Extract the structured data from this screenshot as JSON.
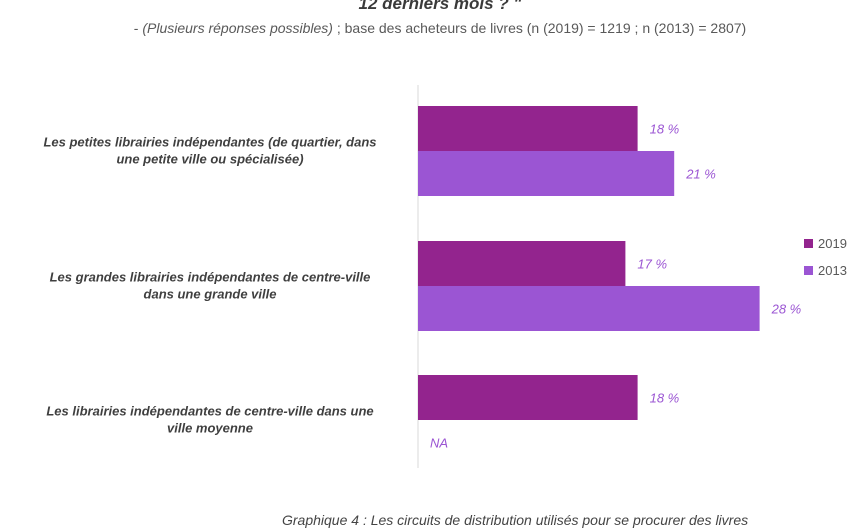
{
  "header": {
    "title_partial": "12 derniers mois ? \"",
    "subtitle_prefix": "- ",
    "subtitle_italic": "(Plusieurs réponses possibles)",
    "subtitle_rest": " ; base des acheteurs de livres (n (2019) = 1219 ; n (2013) = 2807)"
  },
  "chart_data": {
    "type": "bar",
    "orientation": "horizontal",
    "categories": [
      "Les petites librairies indépendantes (de quartier, dans une petite ville ou spécialisée)",
      "Les grandes librairies indépendantes de centre-ville dans une grande ville",
      "Les librairies indépendantes de centre-ville dans une ville moyenne"
    ],
    "category_lines": [
      [
        "Les petites librairies indépendantes (de quartier, dans",
        "une petite ville ou spécialisée)"
      ],
      [
        "Les grandes librairies indépendantes de centre-ville",
        "dans une grande ville"
      ],
      [
        "Les librairies indépendantes de centre-ville dans une",
        "ville moyenne"
      ]
    ],
    "series": [
      {
        "name": "2019",
        "values": [
          18,
          17,
          18
        ],
        "labels": [
          "18 %",
          "17 %",
          "18 %"
        ],
        "color": "#93248e"
      },
      {
        "name": "2013",
        "values": [
          21,
          28,
          null
        ],
        "labels": [
          "21 %",
          "28 %",
          "NA"
        ],
        "color": "#9b55d3"
      }
    ],
    "xlim": [
      0,
      35
    ],
    "legend_position": "right",
    "label_color": "#9b55d3",
    "category_label_color": "#3f3f3f",
    "grid": false
  },
  "caption": "Graphique 4 : Les circuits de distribution utilisés pour se procurer des livres"
}
